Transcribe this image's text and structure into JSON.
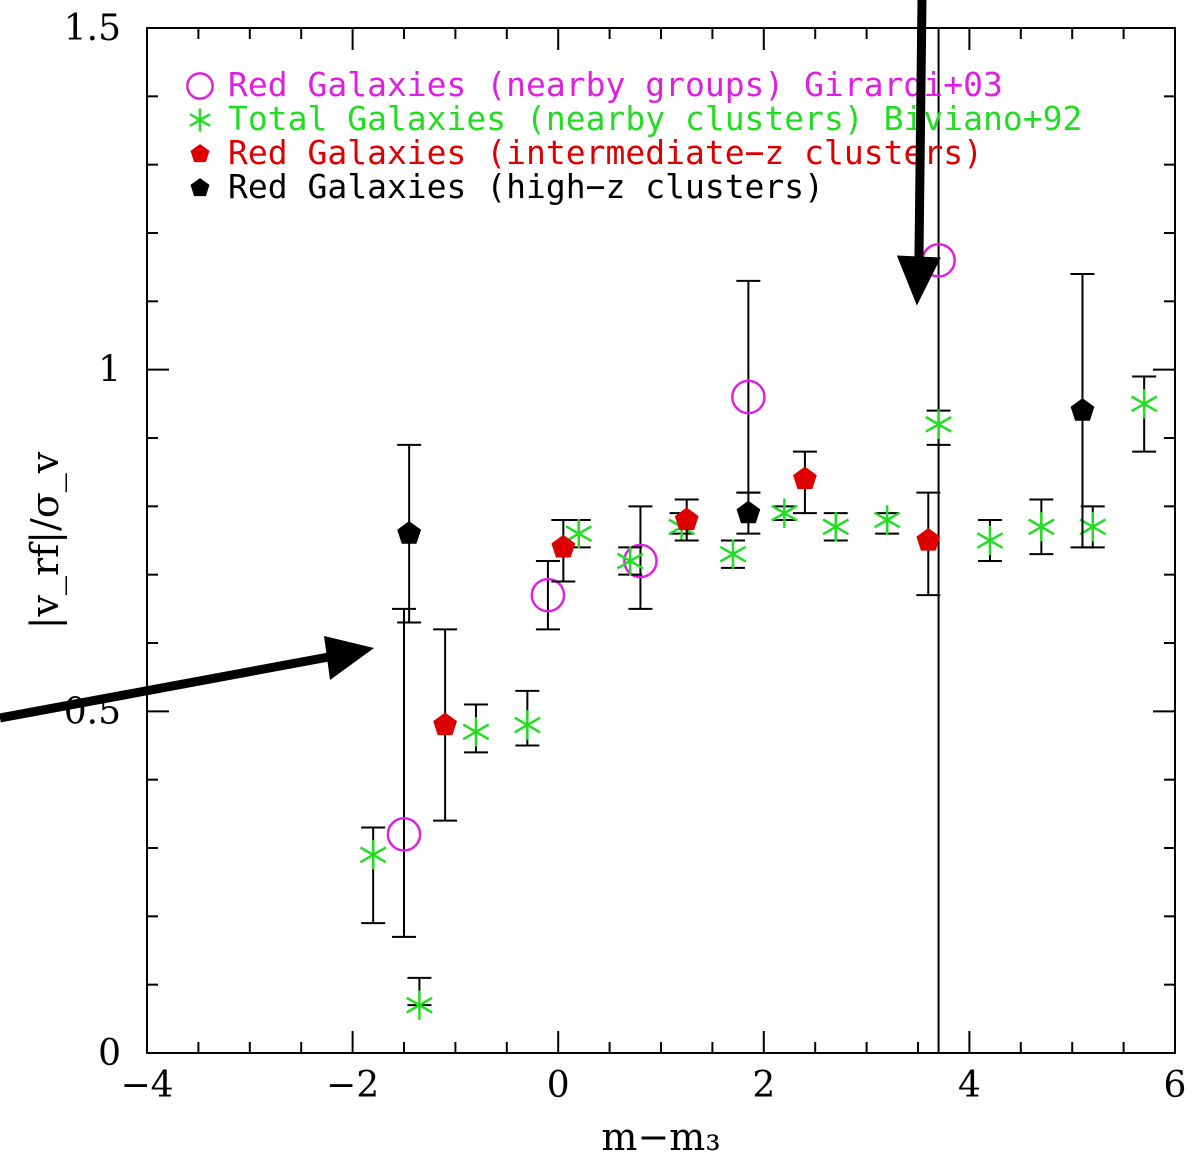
{
  "chart_data": {
    "type": "scatter",
    "xlabel": "m−m₃",
    "ylabel": "|v_rf|/σ_v",
    "xlim": [
      -4,
      6
    ],
    "ylim": [
      0,
      1.5
    ],
    "x_ticks": [
      "−4",
      "−2",
      "0",
      "2",
      "4",
      "6"
    ],
    "y_ticks": [
      "0",
      "0.5",
      "1",
      "1.5"
    ],
    "legend_position": "top-left",
    "vertical_line_x": 3.7,
    "series": [
      {
        "name": "Red Galaxies (nearby groups) Girardi+03",
        "marker": "open-circle",
        "color": "#e020e0",
        "points": [
          {
            "x": -1.5,
            "y": 0.32,
            "err_lo": 0.17,
            "err_hi": 0.65
          },
          {
            "x": -0.1,
            "y": 0.67,
            "err_lo": 0.62,
            "err_hi": 0.72
          },
          {
            "x": 0.8,
            "y": 0.72,
            "err_lo": 0.65,
            "err_hi": 0.8
          },
          {
            "x": 1.85,
            "y": 0.96,
            "err_lo": 0.82,
            "err_hi": 1.13
          },
          {
            "x": 3.7,
            "y": 1.16,
            "err_lo": null,
            "err_hi": null
          }
        ]
      },
      {
        "name": "Total Galaxies (nearby clusters) Biviano+92",
        "marker": "asterisk",
        "color": "#22dd22",
        "points": [
          {
            "x": -1.8,
            "y": 0.29,
            "err_lo": 0.19,
            "err_hi": 0.33
          },
          {
            "x": -1.35,
            "y": 0.07,
            "err_lo": 0.07,
            "err_hi": 0.11
          },
          {
            "x": -0.8,
            "y": 0.47,
            "err_lo": 0.44,
            "err_hi": 0.51
          },
          {
            "x": -0.3,
            "y": 0.48,
            "err_lo": 0.45,
            "err_hi": 0.53
          },
          {
            "x": 0.2,
            "y": 0.76,
            "err_lo": 0.74,
            "err_hi": 0.78
          },
          {
            "x": 0.7,
            "y": 0.72,
            "err_lo": 0.7,
            "err_hi": 0.74
          },
          {
            "x": 1.2,
            "y": 0.77,
            "err_lo": 0.76,
            "err_hi": 0.79
          },
          {
            "x": 1.7,
            "y": 0.73,
            "err_lo": 0.71,
            "err_hi": 0.75
          },
          {
            "x": 2.2,
            "y": 0.79,
            "err_lo": 0.78,
            "err_hi": 0.8
          },
          {
            "x": 2.7,
            "y": 0.77,
            "err_lo": 0.75,
            "err_hi": 0.79
          },
          {
            "x": 3.2,
            "y": 0.78,
            "err_lo": 0.76,
            "err_hi": 0.79
          },
          {
            "x": 3.7,
            "y": 0.92,
            "err_lo": 0.89,
            "err_hi": 0.94
          },
          {
            "x": 4.2,
            "y": 0.75,
            "err_lo": 0.72,
            "err_hi": 0.78
          },
          {
            "x": 4.7,
            "y": 0.77,
            "err_lo": 0.73,
            "err_hi": 0.81
          },
          {
            "x": 5.2,
            "y": 0.77,
            "err_lo": 0.74,
            "err_hi": 0.8
          },
          {
            "x": 5.7,
            "y": 0.95,
            "err_lo": 0.88,
            "err_hi": 0.99
          }
        ]
      },
      {
        "name": "Red Galaxies (intermediate−z clusters)",
        "marker": "filled-pentagon",
        "color": "#dd0000",
        "points": [
          {
            "x": -1.1,
            "y": 0.48,
            "err_lo": 0.34,
            "err_hi": 0.62
          },
          {
            "x": 0.05,
            "y": 0.74,
            "err_lo": 0.69,
            "err_hi": 0.78
          },
          {
            "x": 1.25,
            "y": 0.78,
            "err_lo": 0.75,
            "err_hi": 0.81
          },
          {
            "x": 2.4,
            "y": 0.84,
            "err_lo": 0.79,
            "err_hi": 0.88
          },
          {
            "x": 3.6,
            "y": 0.75,
            "err_lo": 0.67,
            "err_hi": 0.82
          }
        ]
      },
      {
        "name": "Red Galaxies (high−z clusters)",
        "marker": "filled-pentagon",
        "color": "#000000",
        "points": [
          {
            "x": -1.45,
            "y": 0.76,
            "err_lo": 0.63,
            "err_hi": 0.89
          },
          {
            "x": 1.85,
            "y": 0.79,
            "err_lo": 0.76,
            "err_hi": 0.82
          },
          {
            "x": 5.1,
            "y": 0.94,
            "err_lo": 0.74,
            "err_hi": 1.14
          }
        ]
      }
    ],
    "annotations": [
      {
        "type": "arrow",
        "points_to": {
          "x": 3.45,
          "y": 1.05
        }
      },
      {
        "type": "arrow",
        "points_to": {
          "x": -1.85,
          "y": 0.6
        }
      }
    ]
  }
}
